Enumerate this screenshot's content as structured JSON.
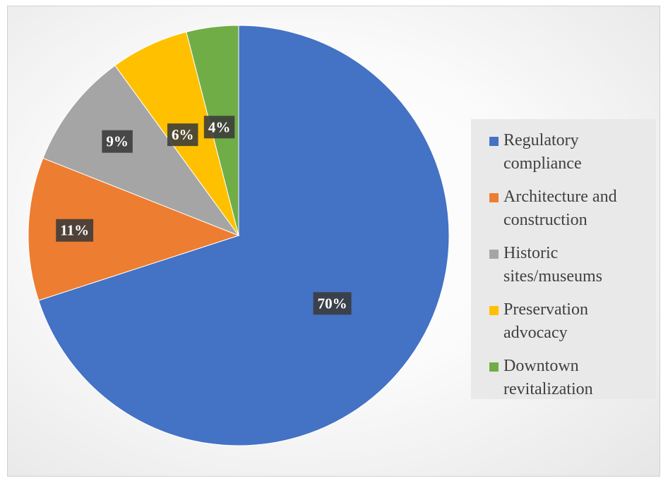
{
  "chart_data": {
    "type": "pie",
    "title": "",
    "categories": [
      "Regulatory compliance",
      "Architecture and construction",
      "Historic sites/museums",
      "Preservation advocacy",
      "Downtown revitalization"
    ],
    "values": [
      70,
      11,
      9,
      6,
      4
    ],
    "data_labels": [
      "70%",
      "11%",
      "9%",
      "6%",
      "4%"
    ],
    "legend_lines": [
      [
        "Regulatory",
        "compliance"
      ],
      [
        "Architecture and",
        "construction"
      ],
      [
        "Historic",
        "sites/museums"
      ],
      [
        "Preservation",
        "advocacy"
      ],
      [
        "Downtown",
        "revitalization"
      ]
    ],
    "colors": [
      "#4472c4",
      "#ed7d31",
      "#a5a5a5",
      "#ffc000",
      "#70ad47"
    ],
    "legend_placement": "right",
    "start": "12 o'clock, clockwise"
  }
}
